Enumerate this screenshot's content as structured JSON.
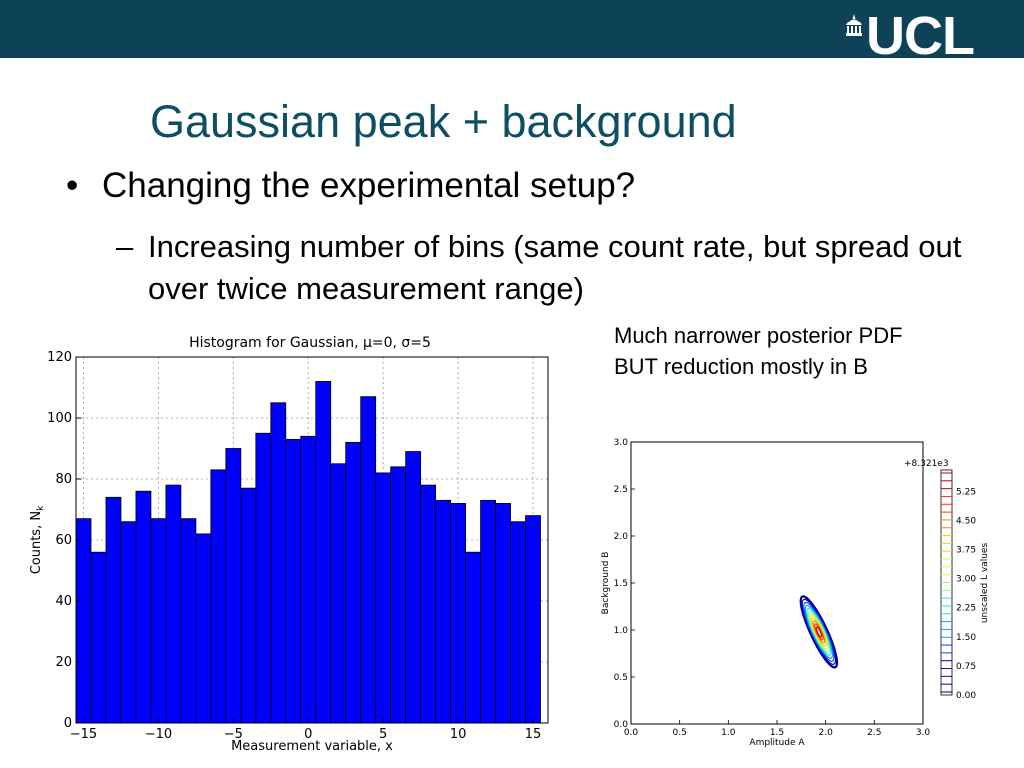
{
  "header": {
    "logo_text": "UCL"
  },
  "slide": {
    "title": "Gaussian peak + background",
    "bullet": "Changing the experimental setup?",
    "sub_bullet": "Increasing number of bins (same count rate, but spread out over twice measurement range)",
    "note_line1": "Much narrower posterior PDF",
    "note_line2": "BUT reduction mostly in B"
  },
  "chart_data": [
    {
      "type": "bar",
      "title": "Histogram for Gaussian,  μ=0, σ=5",
      "xlabel": "Measurement variable, x",
      "ylabel": "Counts, N",
      "ylabel_subscript": "k",
      "xlim": [
        -15.5,
        16
      ],
      "ylim": [
        0,
        120
      ],
      "xticks": [
        -15,
        -10,
        -5,
        0,
        5,
        10,
        15
      ],
      "xtick_labels": [
        "−15",
        "−10",
        "−5",
        "0",
        "5",
        "10",
        "15"
      ],
      "yticks": [
        0,
        20,
        40,
        60,
        80,
        100,
        120
      ],
      "bin_width": 1,
      "bin_start": -15.5,
      "values": [
        67,
        56,
        74,
        66,
        76,
        67,
        78,
        67,
        62,
        83,
        90,
        77,
        95,
        105,
        93,
        94,
        112,
        85,
        92,
        107,
        82,
        84,
        89,
        78,
        73,
        72,
        56,
        73,
        72,
        66,
        68
      ],
      "bar_color": "#0000ff",
      "grid": true
    },
    {
      "type": "contour",
      "xlabel": "Amplitude A",
      "ylabel": "Background B",
      "xlim": [
        0.0,
        3.0
      ],
      "ylim": [
        0.0,
        3.0
      ],
      "xticks": [
        "0.0",
        "0.5",
        "1.0",
        "1.5",
        "2.0",
        "2.5",
        "3.0"
      ],
      "yticks": [
        "0.0",
        "0.5",
        "1.0",
        "1.5",
        "2.0",
        "2.5",
        "3.0"
      ],
      "peak": {
        "A": 1.93,
        "B": 0.98
      },
      "colorbar_offset": "+8.321e3",
      "colorbar_label": "unscaled L values",
      "colorbar_ticks": [
        "0.00",
        "0.75",
        "1.50",
        "2.25",
        "3.00",
        "3.75",
        "4.50",
        "5.25"
      ],
      "contour_colors": [
        "#000080",
        "#0000d0",
        "#0040ff",
        "#00a0ff",
        "#20e0e0",
        "#80ff80",
        "#d0ff30",
        "#ffd000",
        "#ff8000",
        "#ff3000",
        "#c00000"
      ]
    }
  ]
}
